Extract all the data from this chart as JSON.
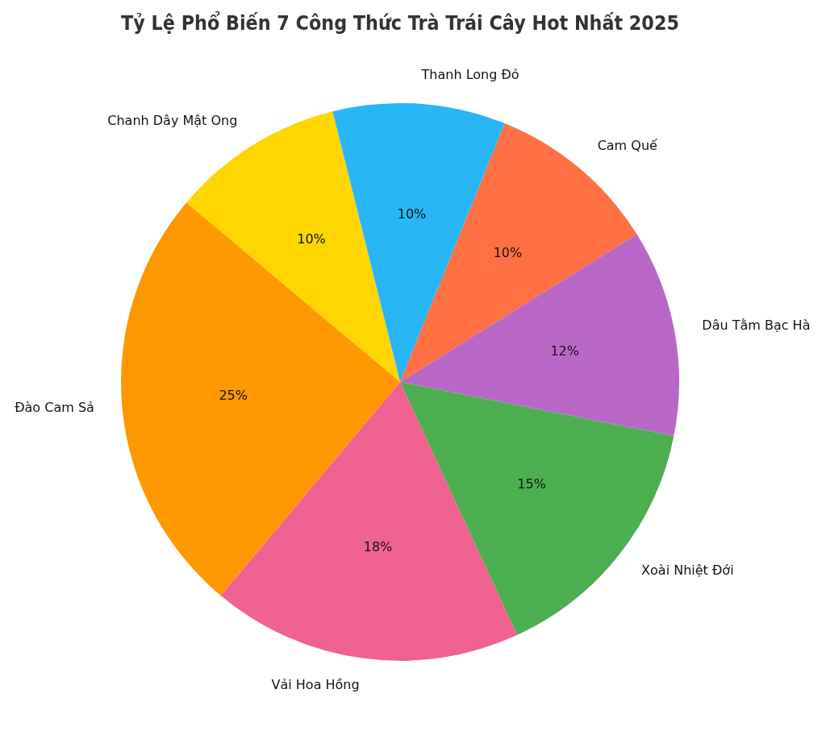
{
  "chart_data": {
    "type": "pie",
    "title": "Tỷ Lệ Phổ Biến 7 Công Thức Trà Trái Cây Hot Nhất 2025",
    "categories": [
      "Chanh Dây Mật Ong",
      "Thanh Long Đỏ",
      "Cam Quế",
      "Dâu Tằm Bạc Hà",
      "Xoài Nhiệt Đới",
      "Vải Hoa Hồng",
      "Đào Cam Sả"
    ],
    "values": [
      10,
      10,
      10,
      12,
      15,
      18,
      25
    ],
    "value_labels": [
      "10%",
      "10%",
      "10%",
      "12%",
      "15%",
      "18%",
      "25%"
    ],
    "colors": [
      "#ffd600",
      "#29b6f6",
      "#ff7043",
      "#ba68c8",
      "#4caf50",
      "#f06292",
      "#ff9800"
    ],
    "legend": false
  }
}
